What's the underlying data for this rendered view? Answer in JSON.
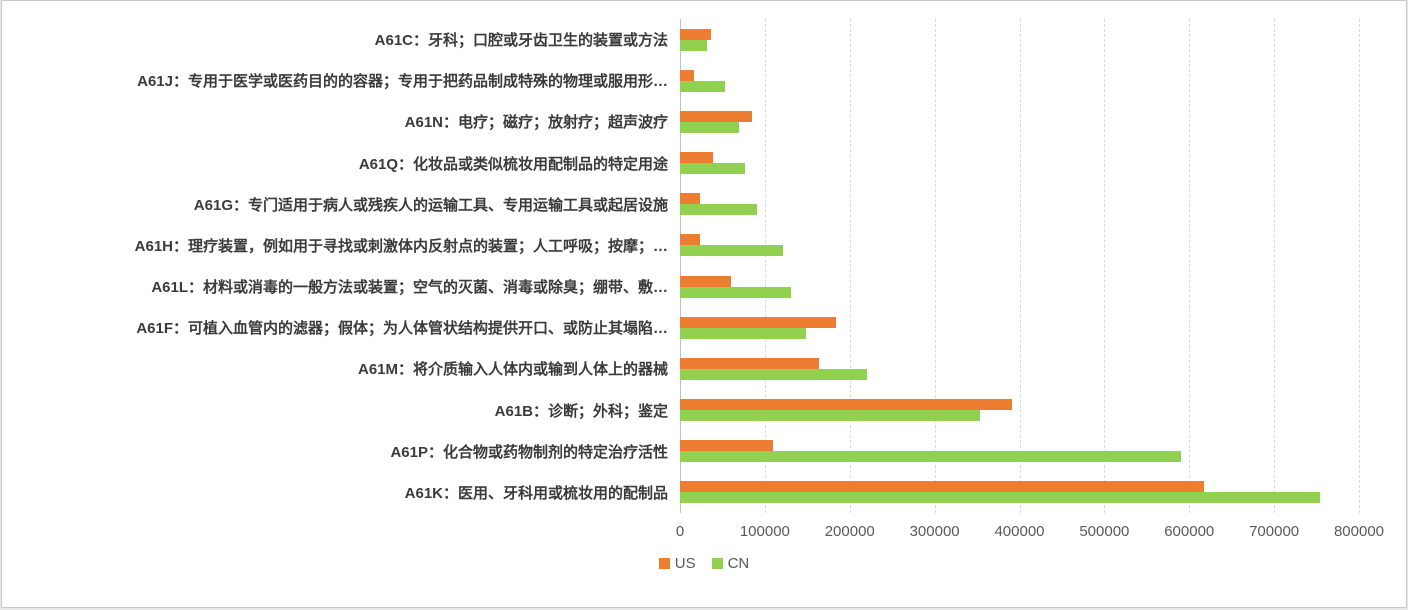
{
  "chart_data": {
    "type": "bar",
    "orientation": "horizontal",
    "title": "",
    "xlabel": "",
    "ylabel": "",
    "xlim": [
      0,
      800000
    ],
    "x_tick_labels": [
      "0",
      "100000",
      "200000",
      "300000",
      "400000",
      "500000",
      "600000",
      "700000",
      "800000"
    ],
    "grid": "vertical-dashed",
    "legend_position": "bottom-center",
    "categories": [
      "A61C：牙科；口腔或牙齿卫生的装置或方法",
      "A61J：专用于医学或医药目的的容器；专用于把药品制成特殊的物理或服用形…",
      "A61N：电疗；磁疗；放射疗；超声波疗",
      "A61Q：化妆品或类似梳妆用配制品的特定用途",
      "A61G：专门适用于病人或残疾人的运输工具、专用运输工具或起居设施",
      "A61H：理疗装置，例如用于寻找或刺激体内反射点的装置；人工呼吸；按摩；…",
      "A61L：材料或消毒的一般方法或装置；空气的灭菌、消毒或除臭；绷带、敷…",
      "A61F：可植入血管内的滤器；假体；为人体管状结构提供开口、或防止其塌陷…",
      "A61M：将介质输入人体内或输到人体上的器械",
      "A61B：诊断；外科；鉴定",
      "A61P：化合物或药物制剂的特定治疗活性",
      "A61K：医用、牙科用或梳妆用的配制品"
    ],
    "series": [
      {
        "name": "US",
        "color": "#ED7D31",
        "values": [
          36000,
          17000,
          85000,
          39000,
          24000,
          23000,
          60000,
          184000,
          164000,
          391000,
          109000,
          617000
        ]
      },
      {
        "name": "CN",
        "color": "#92D050",
        "values": [
          32000,
          53000,
          70000,
          76000,
          91000,
          121000,
          131000,
          148000,
          220000,
          354000,
          590000,
          754000
        ]
      }
    ]
  },
  "legend": {
    "us_label": "US",
    "cn_label": "CN"
  }
}
